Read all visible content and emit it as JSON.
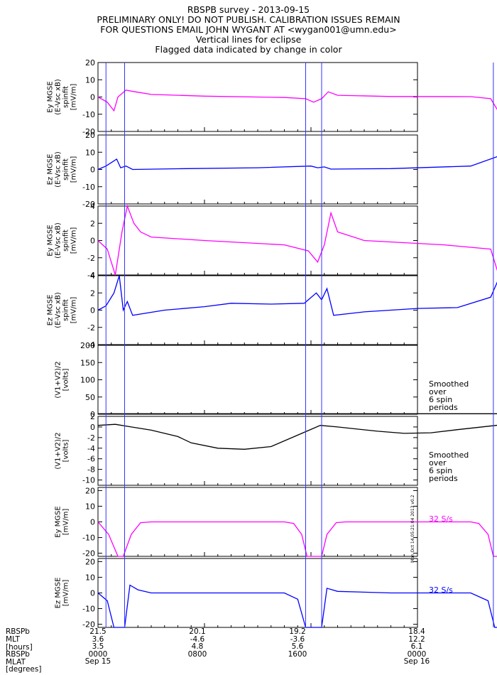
{
  "header": {
    "lines": [
      "RBSPB survey - 2013-09-15",
      "PRELIMINARY ONLY! DO NOT PUBLISH. CALIBRATION ISSUES REMAIN",
      "FOR QUESTIONS EMAIL JOHN WYGANT AT <wygan001@umn.edu>",
      "Vertical lines for eclipse",
      "Flagged data indicated by change in color"
    ]
  },
  "colors": {
    "magenta": "#ff00ff",
    "blue": "#0000ff",
    "black": "#000000",
    "eclipse_line": "#3333ff"
  },
  "chart_data": {
    "type": "line",
    "x_range_hours": [
      0,
      24
    ],
    "eclipse_intervals_hours": [
      [
        0.6,
        2.0
      ],
      [
        15.6,
        16.8
      ],
      [
        29.7,
        30.8
      ]
    ],
    "panels": [
      {
        "id": "p1",
        "ylabel": [
          "Ey MGSE",
          "(E-Vsc xB)",
          "spinfit",
          "[mV/m]"
        ],
        "ylim": [
          -20,
          20
        ],
        "yticks": [
          20,
          10,
          0,
          -10,
          -20
        ],
        "color": "#ff00ff",
        "right_label": "",
        "series": [
          [
            0,
            0
          ],
          [
            0.7,
            -3
          ],
          [
            1.2,
            -8
          ],
          [
            1.5,
            0
          ],
          [
            2.1,
            4
          ],
          [
            2.8,
            3
          ],
          [
            4,
            1.5
          ],
          [
            8,
            0.5
          ],
          [
            14,
            -0.3
          ],
          [
            15.6,
            -1
          ],
          [
            16.2,
            -3
          ],
          [
            16.8,
            -1
          ],
          [
            17.3,
            3
          ],
          [
            18,
            1
          ],
          [
            22,
            0.3
          ],
          [
            28,
            0.2
          ],
          [
            29.5,
            -1
          ],
          [
            30.2,
            -10
          ],
          [
            30.8,
            -3
          ],
          [
            31.5,
            2
          ],
          [
            32.5,
            0.5
          ],
          [
            36,
            0.2
          ],
          [
            40,
            0.2
          ]
        ]
      },
      {
        "id": "p2",
        "ylabel": [
          "Ez MGSE",
          "(E-Vsc xB)",
          "spinfit",
          "[mV/m]"
        ],
        "ylim": [
          -20,
          20
        ],
        "yticks": [
          20,
          10,
          0,
          -10,
          -20
        ],
        "color": "#0000ff",
        "right_label": "",
        "series": [
          [
            0,
            0
          ],
          [
            0.6,
            2
          ],
          [
            1.4,
            6
          ],
          [
            1.7,
            1
          ],
          [
            2.1,
            2
          ],
          [
            2.6,
            0
          ],
          [
            6,
            0.4
          ],
          [
            12,
            1
          ],
          [
            16,
            2
          ],
          [
            16.5,
            1
          ],
          [
            17,
            1.5
          ],
          [
            17.5,
            0.2
          ],
          [
            22,
            0.5
          ],
          [
            28,
            2
          ],
          [
            30.2,
            8
          ],
          [
            30.6,
            -2
          ],
          [
            31.2,
            -4
          ],
          [
            32,
            -1
          ],
          [
            36,
            0
          ],
          [
            40,
            0
          ]
        ]
      },
      {
        "id": "p3",
        "ylabel": [
          "Ey MGSE",
          "(E-Vsc xB)",
          "spinfit",
          "[mV/m]"
        ],
        "ylim": [
          -4,
          4
        ],
        "yticks": [
          4,
          2,
          0,
          -2,
          -4
        ],
        "color": "#ff00ff",
        "right_label": "",
        "series": [
          [
            0,
            0
          ],
          [
            0.7,
            -1
          ],
          [
            1.3,
            -4
          ],
          [
            1.8,
            1
          ],
          [
            2.2,
            4
          ],
          [
            2.7,
            2
          ],
          [
            3.2,
            1
          ],
          [
            4,
            0.4
          ],
          [
            8,
            0
          ],
          [
            14,
            -0.5
          ],
          [
            15.8,
            -1.2
          ],
          [
            16.5,
            -2.5
          ],
          [
            17,
            -0.5
          ],
          [
            17.5,
            3.2
          ],
          [
            18,
            1
          ],
          [
            20,
            0
          ],
          [
            26,
            -0.5
          ],
          [
            29.5,
            -1
          ],
          [
            30.1,
            -4
          ],
          [
            30.8,
            0.2
          ],
          [
            31.5,
            1.3
          ],
          [
            32.5,
            0.2
          ],
          [
            36,
            -0.2
          ],
          [
            40,
            -0.2
          ]
        ]
      },
      {
        "id": "p4",
        "ylabel": [
          "Ez MGSE",
          "(E-Vsc xB)",
          "spinfit",
          "[mV/m]"
        ],
        "ylim": [
          -4,
          4
        ],
        "yticks": [
          4,
          2,
          0,
          -2,
          -4
        ],
        "color": "#0000ff",
        "right_label": "",
        "series": [
          [
            0,
            0
          ],
          [
            0.6,
            0.5
          ],
          [
            1.2,
            2
          ],
          [
            1.6,
            4
          ],
          [
            1.9,
            0
          ],
          [
            2.2,
            1
          ],
          [
            2.6,
            -0.6
          ],
          [
            5,
            0
          ],
          [
            8,
            0.4
          ],
          [
            10,
            0.8
          ],
          [
            13,
            0.7
          ],
          [
            15.5,
            0.8
          ],
          [
            16.4,
            2
          ],
          [
            16.8,
            1.2
          ],
          [
            17.2,
            2.5
          ],
          [
            17.7,
            -0.6
          ],
          [
            20,
            -0.2
          ],
          [
            24,
            0.2
          ],
          [
            27,
            0.3
          ],
          [
            29.5,
            1.5
          ],
          [
            30.2,
            4
          ],
          [
            30.6,
            -1
          ],
          [
            31,
            -4
          ],
          [
            31.5,
            -2
          ],
          [
            33,
            -0.5
          ],
          [
            36,
            0
          ],
          [
            40,
            0.5
          ]
        ]
      },
      {
        "id": "p5",
        "ylabel": [
          "(V1+V2)/2",
          "[volts]"
        ],
        "ylim": [
          0,
          200
        ],
        "yticks": [
          200,
          150,
          100,
          50,
          0
        ],
        "color": "#000000",
        "right_label": "Smoothed\nover\n6 spin\nperiods",
        "series": [
          [
            0,
            1.5
          ],
          [
            40,
            1.5
          ]
        ]
      },
      {
        "id": "p6",
        "ylabel": [
          "(V1+V2)/2",
          "[volts]"
        ],
        "ylim": [
          -11,
          2
        ],
        "yticks": [
          2,
          0,
          -2,
          -4,
          -6,
          -8,
          -10
        ],
        "color": "#000000",
        "right_label": "Smoothed\nover\n6 spin\nperiods",
        "series": [
          [
            0,
            0.3
          ],
          [
            1.3,
            0.5
          ],
          [
            2.5,
            0
          ],
          [
            4,
            -0.6
          ],
          [
            6,
            -1.8
          ],
          [
            7,
            -3
          ],
          [
            9,
            -4
          ],
          [
            11,
            -4.2
          ],
          [
            13,
            -3.7
          ],
          [
            15.5,
            -1
          ],
          [
            16.7,
            0.3
          ],
          [
            18,
            0
          ],
          [
            21,
            -0.8
          ],
          [
            23,
            -1.2
          ],
          [
            25,
            -1.1
          ],
          [
            27,
            -0.5
          ],
          [
            30.3,
            0.4
          ],
          [
            31.5,
            0
          ],
          [
            34,
            -0.7
          ],
          [
            37,
            -1.5
          ],
          [
            40,
            -2.2
          ]
        ]
      },
      {
        "id": "p7",
        "ylabel": [
          "Ey MGSE",
          "[mV/m]"
        ],
        "ylim": [
          -22,
          22
        ],
        "yticks": [
          20,
          10,
          0,
          -10,
          -20
        ],
        "color": "#ff00ff",
        "right_label": "32 S/s",
        "series": [
          [
            0,
            0
          ],
          [
            0.8,
            -8
          ],
          [
            1.5,
            -22
          ],
          [
            1.9,
            -22
          ],
          [
            2.5,
            -8
          ],
          [
            3.2,
            -0.5
          ],
          [
            4,
            0
          ],
          [
            14,
            0
          ],
          [
            14.7,
            -1
          ],
          [
            15.3,
            -8
          ],
          [
            15.7,
            -22
          ],
          [
            16.8,
            -22
          ],
          [
            17.2,
            -8
          ],
          [
            17.9,
            -0.5
          ],
          [
            18.6,
            0
          ],
          [
            28,
            0
          ],
          [
            28.6,
            -1
          ],
          [
            29.3,
            -8
          ],
          [
            29.7,
            -22
          ],
          [
            30.8,
            -22
          ],
          [
            31.2,
            -8
          ],
          [
            31.9,
            -0.5
          ],
          [
            32.6,
            0
          ],
          [
            40,
            0
          ]
        ]
      },
      {
        "id": "p8",
        "ylabel": [
          "Ez MGSE",
          "[mV/m]"
        ],
        "ylim": [
          -22,
          22
        ],
        "yticks": [
          20,
          10,
          0,
          -10,
          -20
        ],
        "color": "#0000ff",
        "right_label": "32 S/s",
        "series": [
          [
            0,
            0
          ],
          [
            0.7,
            -5
          ],
          [
            1.2,
            -22
          ],
          [
            2.0,
            -22
          ],
          [
            2.4,
            5
          ],
          [
            3,
            2
          ],
          [
            4,
            0
          ],
          [
            8,
            0
          ],
          [
            14,
            0
          ],
          [
            15,
            -4
          ],
          [
            15.6,
            -22
          ],
          [
            16.8,
            -22
          ],
          [
            17.2,
            3
          ],
          [
            18,
            1
          ],
          [
            22,
            0
          ],
          [
            28,
            0
          ],
          [
            29.3,
            -5
          ],
          [
            29.8,
            -22
          ],
          [
            30.4,
            -22
          ],
          [
            30.8,
            22
          ],
          [
            31.5,
            6
          ],
          [
            33,
            1
          ],
          [
            36,
            0
          ],
          [
            40,
            0
          ]
        ]
      }
    ]
  },
  "bottom_axis": {
    "row_labels": [
      "RBSPb",
      "MLT",
      "[hours]",
      "RBSPb",
      "MLAT",
      "[degrees]"
    ],
    "columns": [
      {
        "lines": [
          "21.5",
          "3.6",
          "3.5",
          "0000",
          "Sep 15"
        ]
      },
      {
        "lines": [
          "20.1",
          "-4.6",
          "4.8",
          "0800",
          ""
        ]
      },
      {
        "lines": [
          "19.2",
          "-3.6",
          "5.6",
          "1600",
          ""
        ]
      },
      {
        "lines": [
          "18.4",
          "12.2",
          "6.1",
          "0000",
          "Sep 16"
        ]
      }
    ]
  },
  "timestamp": "Mon Oct 14 05:21:04 2013 v0.2"
}
